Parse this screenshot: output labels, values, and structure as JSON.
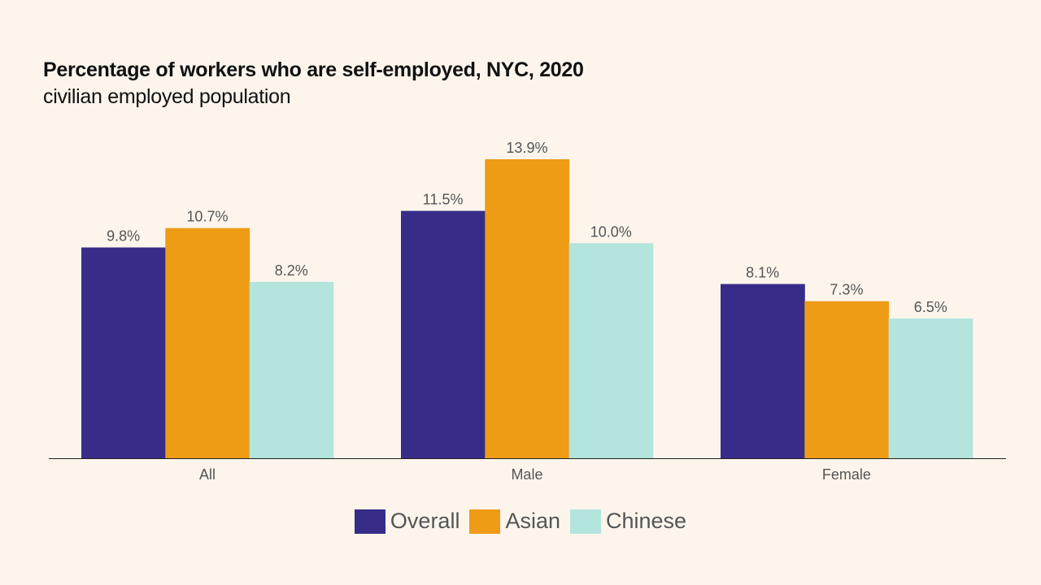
{
  "chart_data": {
    "type": "bar",
    "title": "Percentage of workers who are self-employed, NYC, 2020",
    "subtitle": "civilian employed population",
    "categories": [
      "All",
      "Male",
      "Female"
    ],
    "series": [
      {
        "name": "Overall",
        "color": "#372d89",
        "values": [
          9.8,
          11.5,
          8.1
        ],
        "labels": [
          "9.8%",
          "11.5%",
          "8.1%"
        ]
      },
      {
        "name": "Asian",
        "color": "#ee9b16",
        "values": [
          10.7,
          13.9,
          7.3
        ],
        "labels": [
          "10.7%",
          "13.9%",
          "7.3%"
        ]
      },
      {
        "name": "Chinese",
        "color": "#b3e5dd",
        "values": [
          8.2,
          10.0,
          6.5
        ],
        "labels": [
          "8.2%",
          "10.0%",
          "6.5%"
        ]
      }
    ],
    "xlabel": "",
    "ylabel": "",
    "ylim": [
      0,
      13.9
    ],
    "grid": false,
    "legend_position": "bottom"
  }
}
